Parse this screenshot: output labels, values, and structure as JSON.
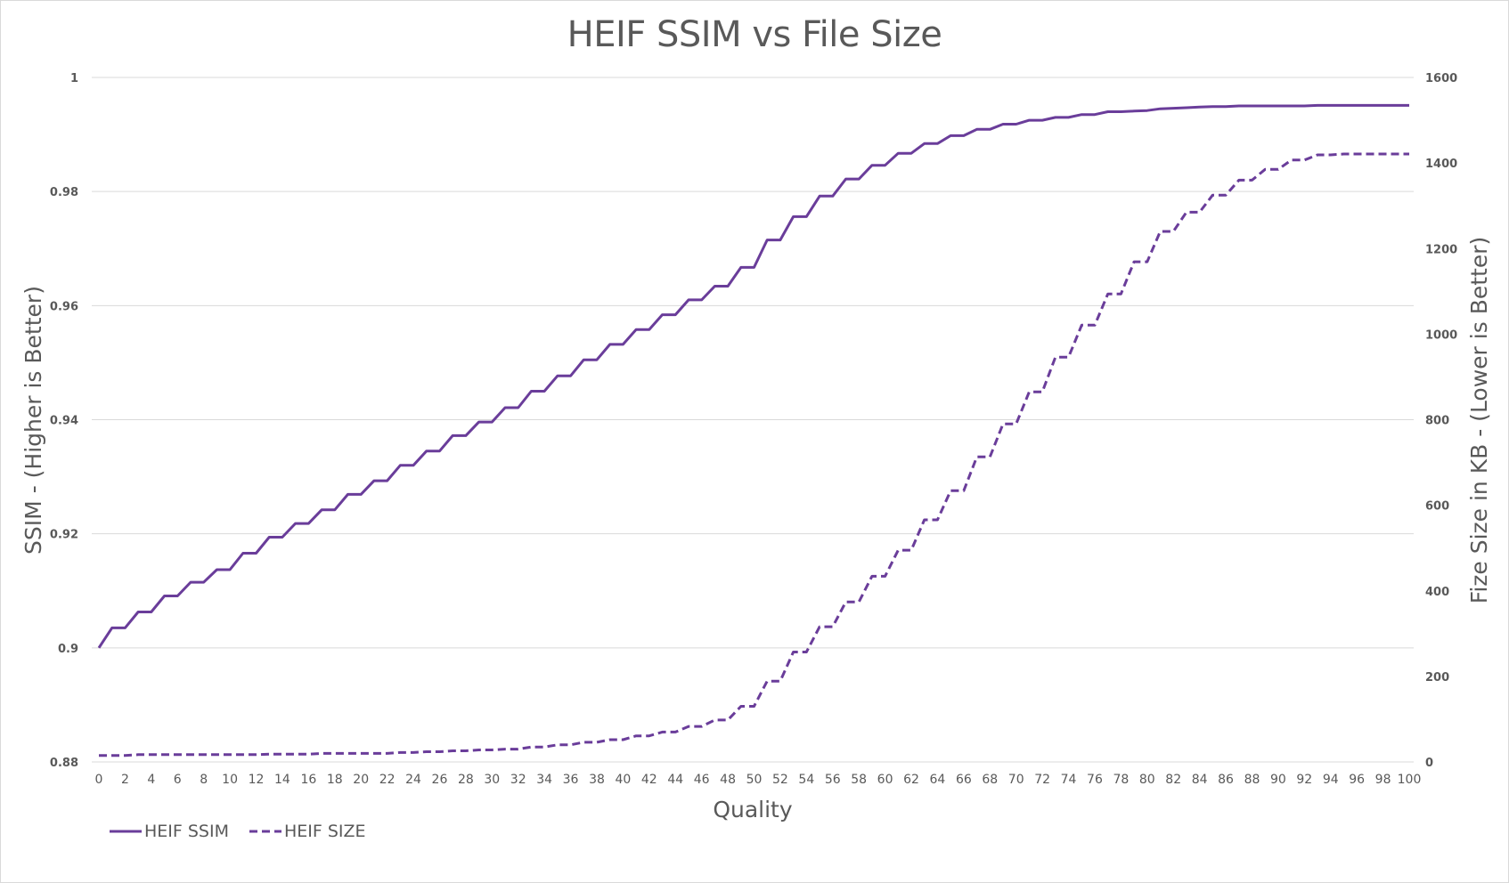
{
  "chart_data": {
    "type": "line",
    "title": "HEIF SSIM vs File Size",
    "xlabel": "Quality",
    "ylabel": "SSIM - (Higher is Better)",
    "y2label": "Fize Size in KB - (Lower is Better)",
    "xlim": [
      0,
      100
    ],
    "ylim": [
      0.88,
      1.0
    ],
    "y2lim": [
      0,
      1600
    ],
    "grid": true,
    "legend_position": "bottom-left",
    "x_ticks": [
      0,
      2,
      4,
      6,
      8,
      10,
      12,
      14,
      16,
      18,
      20,
      22,
      24,
      26,
      28,
      30,
      32,
      34,
      36,
      38,
      40,
      42,
      44,
      46,
      48,
      50,
      52,
      54,
      56,
      58,
      60,
      62,
      64,
      66,
      68,
      70,
      72,
      74,
      76,
      78,
      80,
      82,
      84,
      86,
      88,
      90,
      92,
      94,
      96,
      98,
      100
    ],
    "y_ticks": [
      "0.88",
      "0.9",
      "0.92",
      "0.94",
      "0.96",
      "0.98",
      "1"
    ],
    "y2_ticks": [
      "0",
      "200",
      "400",
      "600",
      "800",
      "1000",
      "1200",
      "1400",
      "1600"
    ],
    "x": [
      0,
      1,
      2,
      3,
      4,
      5,
      6,
      7,
      8,
      9,
      10,
      11,
      12,
      13,
      14,
      15,
      16,
      17,
      18,
      19,
      20,
      21,
      22,
      23,
      24,
      25,
      26,
      27,
      28,
      29,
      30,
      31,
      32,
      33,
      34,
      35,
      36,
      37,
      38,
      39,
      40,
      41,
      42,
      43,
      44,
      45,
      46,
      47,
      48,
      49,
      50,
      51,
      52,
      53,
      54,
      55,
      56,
      57,
      58,
      59,
      60,
      61,
      62,
      63,
      64,
      65,
      66,
      67,
      68,
      69,
      70,
      71,
      72,
      73,
      74,
      75,
      76,
      77,
      78,
      79,
      80,
      81,
      82,
      83,
      84,
      85,
      86,
      87,
      88,
      89,
      90,
      91,
      92,
      93,
      94,
      95,
      96,
      97,
      98,
      99,
      100
    ],
    "series": [
      {
        "name": "HEIF SSIM",
        "axis": "left",
        "style": "solid",
        "color": "#6a3d9a",
        "values": [
          0.9,
          0.9035,
          0.9035,
          0.9063,
          0.9063,
          0.9091,
          0.9091,
          0.9115,
          0.9115,
          0.9137,
          0.9137,
          0.9166,
          0.9166,
          0.9194,
          0.9194,
          0.9218,
          0.9218,
          0.9242,
          0.9242,
          0.9269,
          0.9269,
          0.9293,
          0.9293,
          0.932,
          0.932,
          0.9345,
          0.9345,
          0.9372,
          0.9372,
          0.9396,
          0.9396,
          0.9421,
          0.9421,
          0.945,
          0.945,
          0.9477,
          0.9477,
          0.9505,
          0.9505,
          0.9532,
          0.9532,
          0.9558,
          0.9558,
          0.9584,
          0.9584,
          0.961,
          0.961,
          0.9634,
          0.9634,
          0.9667,
          0.9667,
          0.9715,
          0.9715,
          0.9756,
          0.9756,
          0.9792,
          0.9792,
          0.9822,
          0.9822,
          0.9846,
          0.9846,
          0.9867,
          0.9867,
          0.9884,
          0.9884,
          0.9898,
          0.9898,
          0.9909,
          0.9909,
          0.9918,
          0.9918,
          0.9925,
          0.9925,
          0.993,
          0.993,
          0.9935,
          0.9935,
          0.994,
          0.994,
          0.9941,
          0.9942,
          0.9945,
          0.9946,
          0.9947,
          0.9948,
          0.9949,
          0.9949,
          0.995,
          0.995,
          0.995,
          0.995,
          0.995,
          0.995,
          0.9951,
          0.9951,
          0.9951,
          0.9951,
          0.9951,
          0.9951,
          0.9951,
          0.9951
        ]
      },
      {
        "name": "HEIF SIZE",
        "axis": "right",
        "style": "dashed",
        "color": "#6a3d9a",
        "values": [
          15,
          15,
          15,
          17,
          17,
          17,
          17,
          17,
          17,
          17,
          17,
          17,
          17,
          18,
          18,
          18,
          18,
          20,
          20,
          20,
          20,
          20,
          20,
          22,
          22,
          24,
          24,
          26,
          26,
          28,
          28,
          30,
          30,
          35,
          35,
          40,
          40,
          46,
          46,
          52,
          52,
          61,
          61,
          70,
          70,
          83,
          83,
          98,
          98,
          130,
          130,
          189,
          189,
          257,
          257,
          316,
          316,
          374,
          374,
          434,
          434,
          495,
          495,
          566,
          566,
          634,
          634,
          713,
          713,
          790,
          790,
          865,
          865,
          946,
          946,
          1021,
          1021,
          1094,
          1094,
          1169,
          1169,
          1240,
          1240,
          1285,
          1285,
          1325,
          1325,
          1360,
          1360,
          1385,
          1385,
          1407,
          1407,
          1419,
          1419,
          1421,
          1421,
          1421,
          1421,
          1421,
          1421
        ]
      }
    ]
  },
  "legend": {
    "items": [
      {
        "label": "HEIF SSIM",
        "style": "solid"
      },
      {
        "label": "HEIF SIZE",
        "style": "dashed"
      }
    ]
  },
  "colors": {
    "series": "#6a3d9a",
    "gridline": "#d9d9d9",
    "text": "#595959"
  }
}
